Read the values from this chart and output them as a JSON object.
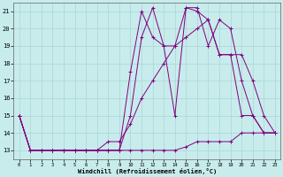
{
  "xlabel": "Windchill (Refroidissement éolien,°C)",
  "background_color": "#c8ecec",
  "grid_color": "#b0d8d8",
  "line_color": "#800080",
  "xlim": [
    -0.5,
    23.5
  ],
  "ylim": [
    12.5,
    21.5
  ],
  "yticks": [
    13,
    14,
    15,
    16,
    17,
    18,
    19,
    20,
    21
  ],
  "xticks": [
    0,
    1,
    2,
    3,
    4,
    5,
    6,
    7,
    8,
    9,
    10,
    11,
    12,
    13,
    14,
    15,
    16,
    17,
    18,
    19,
    20,
    21,
    22,
    23
  ],
  "series": [
    {
      "x": [
        0,
        1,
        2,
        3,
        4,
        5,
        6,
        7,
        8,
        9,
        10,
        11,
        12,
        13,
        14,
        15,
        16,
        17,
        18,
        19,
        20,
        21,
        22,
        23
      ],
      "y": [
        15,
        13,
        13,
        13,
        13,
        13,
        13,
        13,
        13,
        13,
        17.5,
        21,
        19.5,
        19,
        15,
        21.2,
        21.2,
        19,
        20.5,
        20,
        17,
        15,
        14,
        14
      ]
    },
    {
      "x": [
        0,
        1,
        2,
        3,
        4,
        5,
        6,
        7,
        8,
        9,
        10,
        11,
        12,
        13,
        14,
        15,
        16,
        17,
        18,
        19,
        20,
        21,
        22,
        23
      ],
      "y": [
        15,
        13,
        13,
        13,
        13,
        13,
        13,
        13,
        13,
        13,
        15,
        19.5,
        21.2,
        19,
        19,
        21.2,
        21,
        20.5,
        18.5,
        18.5,
        18.5,
        17,
        15,
        14
      ]
    },
    {
      "x": [
        0,
        1,
        2,
        3,
        4,
        5,
        6,
        7,
        8,
        9,
        10,
        11,
        12,
        13,
        14,
        15,
        16,
        17,
        18,
        19,
        20,
        21,
        22,
        23
      ],
      "y": [
        15,
        13,
        13,
        13,
        13,
        13,
        13,
        13,
        13,
        13,
        13,
        13,
        13,
        13,
        13,
        13.2,
        13.5,
        13.5,
        13.5,
        13.5,
        14,
        14,
        14,
        14
      ]
    },
    {
      "x": [
        0,
        1,
        2,
        3,
        4,
        5,
        6,
        7,
        8,
        9,
        10,
        11,
        12,
        13,
        14,
        15,
        16,
        17,
        18,
        19,
        20,
        21,
        22,
        23
      ],
      "y": [
        15,
        13,
        13,
        13,
        13,
        13,
        13,
        13,
        13.5,
        13.5,
        14.5,
        16,
        17,
        18,
        19,
        19.5,
        20,
        20.5,
        18.5,
        18.5,
        15,
        15,
        14,
        14
      ]
    }
  ]
}
